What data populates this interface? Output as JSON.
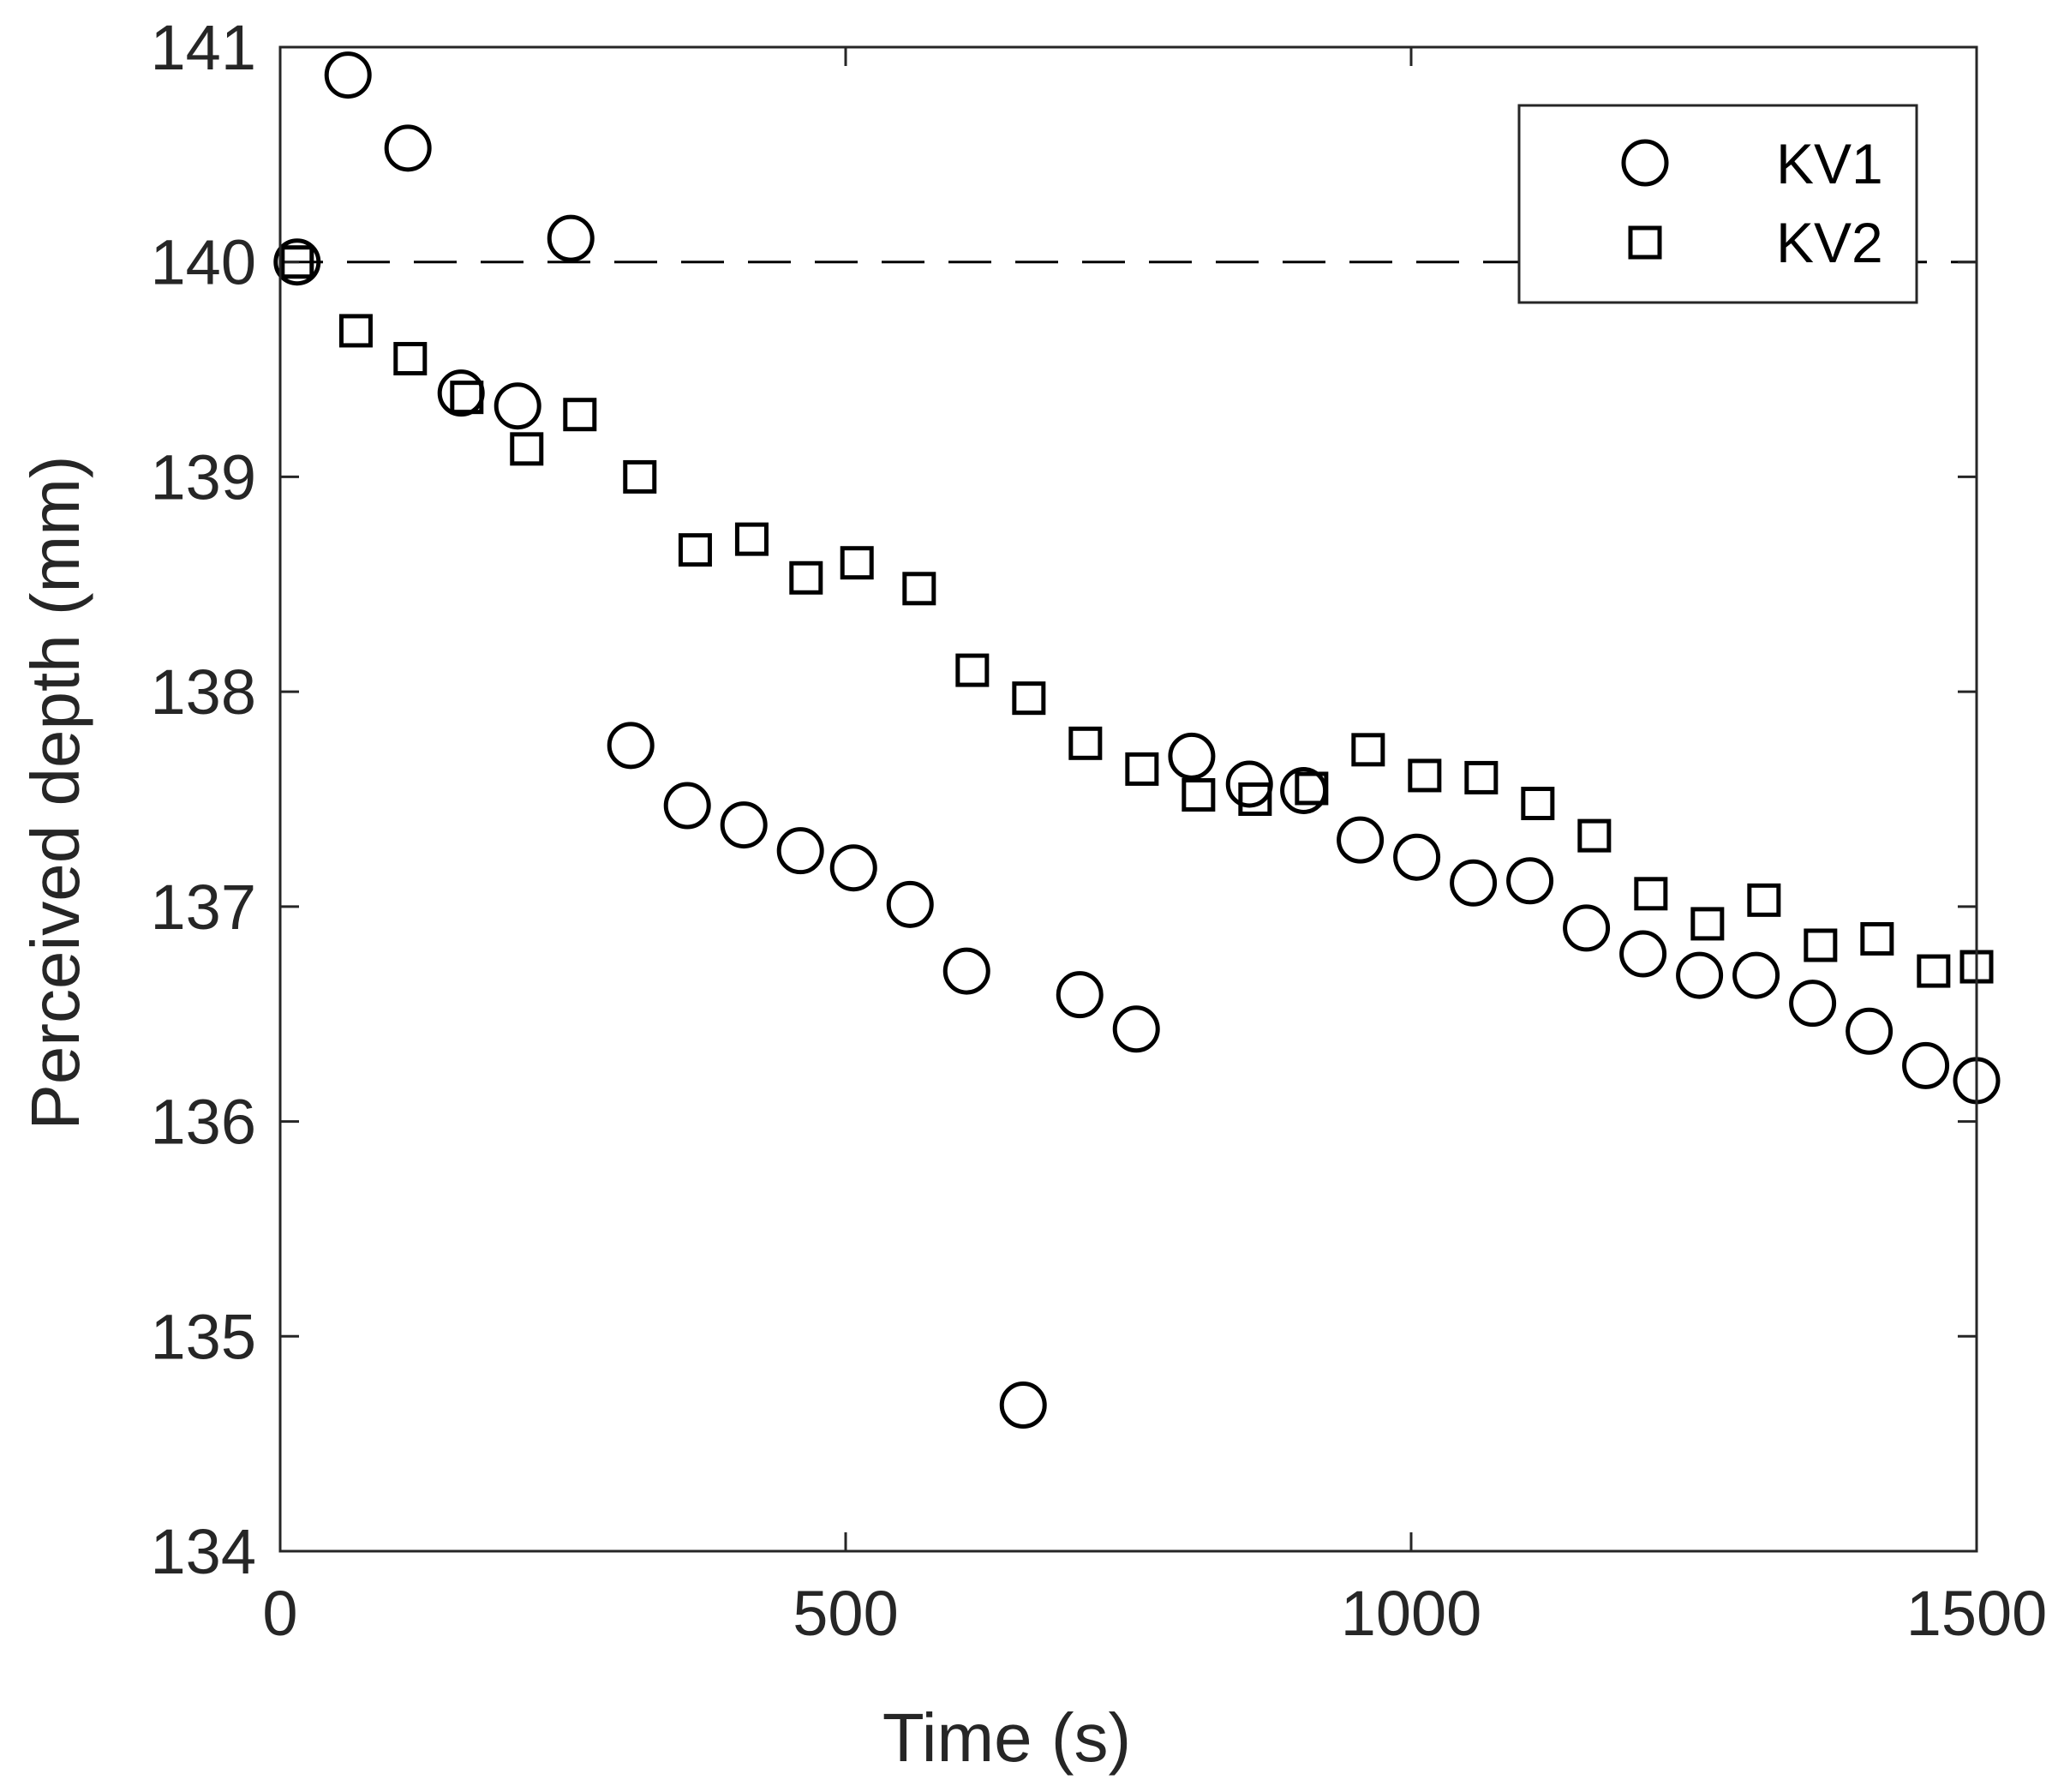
{
  "chart_data": {
    "type": "scatter",
    "title": "",
    "xlabel": "Time (s)",
    "ylabel": "Perceived depth (mm)",
    "xlim": [
      0,
      1500
    ],
    "ylim": [
      134,
      141
    ],
    "xticks": [
      "0",
      "500",
      "1000",
      "1500"
    ],
    "yticks": [
      "134",
      "135",
      "136",
      "137",
      "138",
      "139",
      "140",
      "141"
    ],
    "grid": false,
    "legend_position": "top-right",
    "reference_line": {
      "y": 140,
      "style": "dashed"
    },
    "series": [
      {
        "name": "KV1",
        "marker": "circle",
        "points": [
          [
            15,
            140.0
          ],
          [
            60,
            140.87
          ],
          [
            113,
            140.53
          ],
          [
            257,
            140.11
          ],
          [
            160,
            139.39
          ],
          [
            210,
            139.33
          ],
          [
            310,
            137.75
          ],
          [
            360,
            137.47
          ],
          [
            410,
            137.38
          ],
          [
            460,
            137.26
          ],
          [
            507,
            137.18
          ],
          [
            557,
            137.01
          ],
          [
            607,
            136.7
          ],
          [
            657,
            134.68
          ],
          [
            707,
            136.59
          ],
          [
            757,
            136.43
          ],
          [
            806,
            137.7
          ],
          [
            857,
            137.57
          ],
          [
            905,
            137.54
          ],
          [
            955,
            137.31
          ],
          [
            1005,
            137.23
          ],
          [
            1055,
            137.11
          ],
          [
            1105,
            137.12
          ],
          [
            1155,
            136.9
          ],
          [
            1205,
            136.78
          ],
          [
            1255,
            136.68
          ],
          [
            1305,
            136.68
          ],
          [
            1355,
            136.55
          ],
          [
            1405,
            136.42
          ],
          [
            1455,
            136.26
          ],
          [
            1500,
            136.19
          ]
        ]
      },
      {
        "name": "KV2",
        "marker": "square",
        "points": [
          [
            15,
            140.0
          ],
          [
            67,
            139.68
          ],
          [
            115,
            139.55
          ],
          [
            165,
            139.37
          ],
          [
            218,
            139.13
          ],
          [
            265,
            139.29
          ],
          [
            318,
            139.0
          ],
          [
            367,
            138.66
          ],
          [
            417,
            138.71
          ],
          [
            465,
            138.53
          ],
          [
            510,
            138.6
          ],
          [
            565,
            138.48
          ],
          [
            612,
            138.1
          ],
          [
            662,
            137.97
          ],
          [
            712,
            137.76
          ],
          [
            762,
            137.64
          ],
          [
            812,
            137.52
          ],
          [
            862,
            137.5
          ],
          [
            912,
            137.55
          ],
          [
            962,
            137.73
          ],
          [
            1012,
            137.61
          ],
          [
            1062,
            137.6
          ],
          [
            1112,
            137.48
          ],
          [
            1162,
            137.33
          ],
          [
            1212,
            137.06
          ],
          [
            1262,
            136.92
          ],
          [
            1312,
            137.03
          ],
          [
            1362,
            136.82
          ],
          [
            1412,
            136.85
          ],
          [
            1462,
            136.7
          ],
          [
            1500,
            136.72
          ]
        ]
      }
    ]
  }
}
